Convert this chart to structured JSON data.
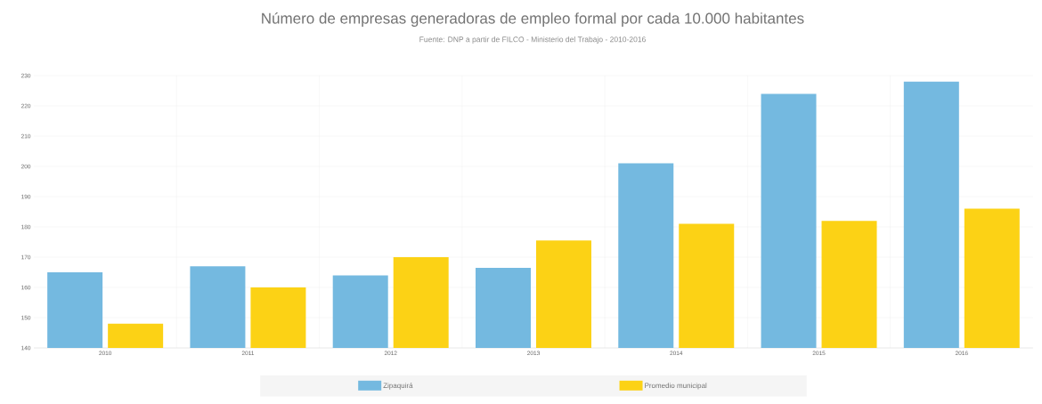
{
  "chart_data": {
    "type": "bar",
    "title": "Número de empresas generadoras de empleo formal por cada 10.000 habitantes",
    "subtitle": "Fuente: DNP a partir de FILCO - Ministerio del Trabajo - 2010-2016",
    "categories": [
      "2010",
      "2011",
      "2012",
      "2013",
      "2014",
      "2015",
      "2016"
    ],
    "series": [
      {
        "name": "Zipaquirá",
        "color": "#74b9e0",
        "values": [
          165,
          167,
          164,
          166.5,
          201,
          224,
          228
        ]
      },
      {
        "name": "Promedio municipal",
        "color": "#fcd215",
        "values": [
          148,
          160,
          170,
          175.5,
          181,
          182,
          186
        ]
      }
    ],
    "ylim": [
      140,
      230
    ],
    "yticks": [
      140,
      150,
      160,
      170,
      180,
      190,
      200,
      210,
      220,
      230
    ],
    "grid": true,
    "legend": "bottom"
  }
}
